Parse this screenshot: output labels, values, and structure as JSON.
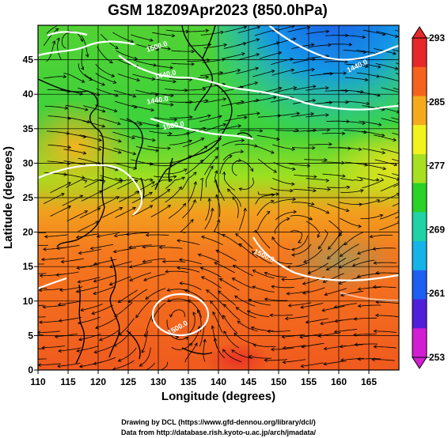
{
  "title": "GSM 18Z09Apr2023 (850.0hPa)",
  "xlabel": "Longitude (degrees)",
  "ylabel": "Latitude (degrees)",
  "x_ticks": [
    "110",
    "115",
    "120",
    "125",
    "130",
    "135",
    "140",
    "145",
    "150",
    "155",
    "160",
    "165"
  ],
  "y_ticks": [
    "0",
    "5",
    "10",
    "15",
    "20",
    "25",
    "30",
    "35",
    "40",
    "45"
  ],
  "colorbar": {
    "ticks": [
      "253",
      "261",
      "269",
      "277",
      "285",
      "293"
    ],
    "colors": [
      "#d21ed2",
      "#5020d8",
      "#1e5ef0",
      "#14b4e8",
      "#20d2a6",
      "#2ad22a",
      "#a6e020",
      "#f2f21e",
      "#f5aa1e",
      "#f5641e",
      "#e62828"
    ]
  },
  "contour_labels": [
    "1500.0",
    "1440.0",
    "1440.0",
    "1500.0",
    "1500.0",
    "1500.0",
    "1440.0"
  ],
  "credits": {
    "line1": "Drawing by DCL (https://www.gfd-dennou.org/library/dcl/)",
    "line2": "Data from http://database.rish.kyoto-u.ac.jp/arch/jmadata/"
  },
  "chart_data": {
    "type": "heatmap",
    "title": "GSM 18Z09Apr2023 (850.0hPa)",
    "xlabel": "Longitude (degrees)",
    "ylabel": "Latitude (degrees)",
    "xlim": [
      110,
      170
    ],
    "ylim": [
      0,
      50
    ],
    "colorbar_range": [
      253,
      293
    ],
    "overlays": [
      "geopotential height contours (white)",
      "wind streamlines (black)",
      "coastlines",
      "lat-lon grid"
    ]
  }
}
